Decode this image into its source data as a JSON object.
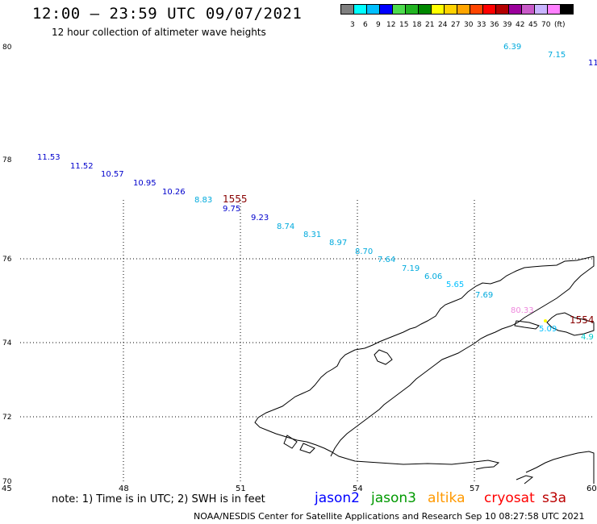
{
  "header": {
    "title": "12:00 – 23:59 UTC 09/07/2021",
    "subtitle": "12 hour collection of altimeter wave heights"
  },
  "scale": {
    "colors": [
      "#7f7f7f",
      "#00ffff",
      "#00bfff",
      "#0000ff",
      "#4ddc4d",
      "#22b422",
      "#008800",
      "#ffff00",
      "#ffd200",
      "#ffa500",
      "#ff4500",
      "#ff0000",
      "#b40000",
      "#9b009b",
      "#c85ac8",
      "#c8b4ff",
      "#ff80ff",
      "#000000"
    ],
    "labels": [
      "3",
      "6",
      "9",
      "12",
      "15",
      "18",
      "21",
      "24",
      "27",
      "30",
      "33",
      "36",
      "39",
      "42",
      "45",
      "70",
      "(ft)"
    ]
  },
  "axes": {
    "lat_labels": [
      "80",
      "78",
      "76",
      "74",
      "72",
      "70"
    ],
    "lon_labels": [
      "45",
      "48",
      "51",
      "54",
      "57",
      "60"
    ]
  },
  "observations": [
    {
      "text": "6.39",
      "color": "#00aadd"
    },
    {
      "text": "7.15",
      "color": "#00aadd"
    },
    {
      "text": "11",
      "color": "#0000cc"
    },
    {
      "text": "11.53",
      "color": "#0000cc"
    },
    {
      "text": "11.52",
      "color": "#0000cc"
    },
    {
      "text": "10.57",
      "color": "#0000cc"
    },
    {
      "text": "10.95",
      "color": "#0000cc"
    },
    {
      "text": "10.26",
      "color": "#0000cc"
    },
    {
      "text": "8.83",
      "color": "#00aadd"
    },
    {
      "text": "1555",
      "color": "#880000"
    },
    {
      "text": "9.75",
      "color": "#0000cc"
    },
    {
      "text": "9.23",
      "color": "#0000cc"
    },
    {
      "text": "8.74",
      "color": "#00aadd"
    },
    {
      "text": "8.31",
      "color": "#00aadd"
    },
    {
      "text": "8.97",
      "color": "#00aadd"
    },
    {
      "text": "8.70",
      "color": "#00aadd"
    },
    {
      "text": "7.64",
      "color": "#00aadd"
    },
    {
      "text": "7.19",
      "color": "#00aadd"
    },
    {
      "text": "6.06",
      "color": "#00aadd"
    },
    {
      "text": "5.65",
      "color": "#00bfff"
    },
    {
      "text": "7.69",
      "color": "#00aadd"
    },
    {
      "text": "80.33",
      "color": "#ee88dd"
    },
    {
      "text": "1554",
      "color": "#880000"
    },
    {
      "text": "5.09",
      "color": "#00bfff"
    },
    {
      "text": "4.9",
      "color": "#00cccc"
    }
  ],
  "footer": {
    "note": "note:  1) Time is in UTC;  2) SWH is in feet",
    "satellites": [
      {
        "name": "jason2",
        "color": "#0000ff"
      },
      {
        "name": "jason3",
        "color": "#009900"
      },
      {
        "name": "altika",
        "color": "#ff9900"
      },
      {
        "name": "cryosat",
        "color": "#ff0000"
      },
      {
        "name": "s3a",
        "color": "#bb0000"
      }
    ],
    "credit": "NOAA/NESDIS Center for Satellite Applications and Research    Sep 10 08:27:58 UTC 2021"
  }
}
